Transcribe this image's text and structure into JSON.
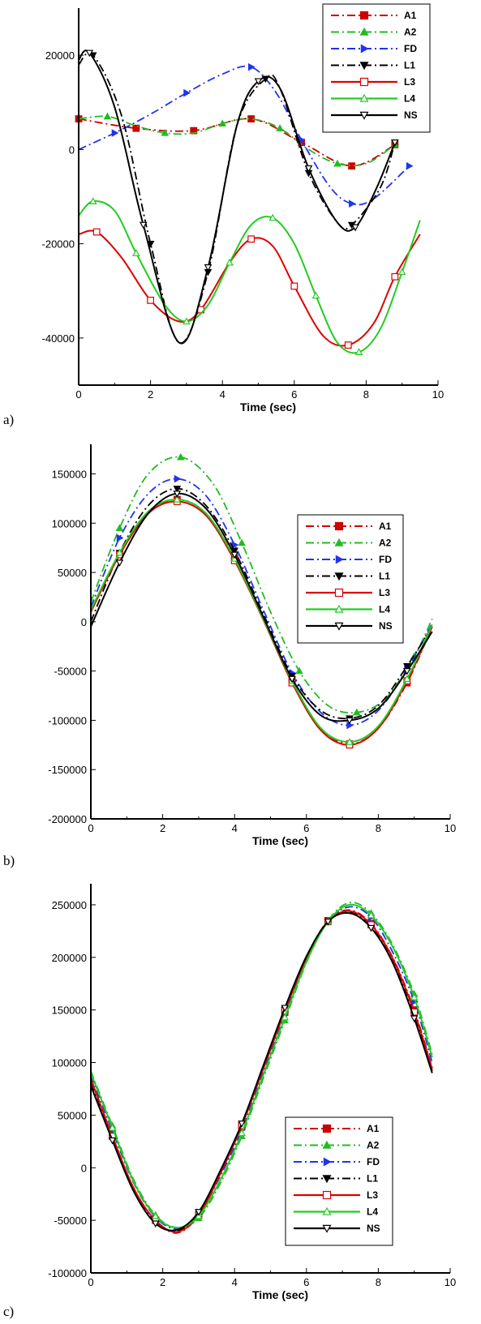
{
  "colors": {
    "A1": "#cc0000",
    "A2": "#22bb22",
    "FD": "#2233ee",
    "L1": "#000000",
    "L3": "#dd0000",
    "L4": "#22cc22",
    "NS": "#000000"
  },
  "legend_entries": [
    {
      "name": "A1",
      "dash": "dashdot",
      "marker": "square-filled",
      "color": "#cc0000"
    },
    {
      "name": "A2",
      "dash": "dashdot",
      "marker": "triangle-up-filled",
      "color": "#22bb22"
    },
    {
      "name": "FD",
      "dash": "dashdot",
      "marker": "triangle-right-filled",
      "color": "#2233ee"
    },
    {
      "name": "L1",
      "dash": "dashdot",
      "marker": "triangle-down-filled",
      "color": "#000000"
    },
    {
      "name": "L3",
      "dash": "solid",
      "marker": "square-open",
      "color": "#dd0000"
    },
    {
      "name": "L4",
      "dash": "solid",
      "marker": "triangle-up-open",
      "color": "#22cc22"
    },
    {
      "name": "NS",
      "dash": "solid",
      "marker": "triangle-down-open",
      "color": "#000000"
    }
  ],
  "chart_data": [
    {
      "panel_label": "a)",
      "type": "line",
      "title": "",
      "xlabel": "Time (sec)",
      "ylabel": "",
      "xlim": [
        0,
        10
      ],
      "ylim": [
        -50000,
        30000
      ],
      "xticks": [
        "0",
        "2",
        "4",
        "6",
        "8",
        "10"
      ],
      "yticks": [
        "20000",
        "0",
        "-20000",
        "-40000"
      ],
      "ytick_values": [
        20000,
        0,
        -20000,
        -40000
      ],
      "legend_position": "top-right",
      "series": [
        {
          "name": "A1",
          "x": [
            0,
            1.6,
            3.2,
            4.8,
            6.2,
            7.6,
            8.8
          ],
          "y": [
            6500,
            4500,
            4000,
            6500,
            1500,
            -3500,
            1000
          ]
        },
        {
          "name": "A2",
          "x": [
            0,
            0.8,
            1.6,
            2.4,
            3.2,
            4.0,
            4.8,
            5.6,
            6.4,
            7.2,
            8.0,
            8.8
          ],
          "y": [
            6500,
            7000,
            5000,
            3500,
            3500,
            5500,
            6500,
            4500,
            0,
            -3000,
            -3000,
            1000
          ]
        },
        {
          "name": "FD",
          "x": [
            0,
            1.0,
            2.0,
            3.0,
            4.0,
            4.8,
            5.5,
            6.2,
            7.0,
            7.6,
            8.2,
            9.2
          ],
          "y": [
            0,
            3500,
            7500,
            12000,
            16000,
            17500,
            12000,
            2000,
            -8000,
            -11500,
            -10500,
            -3500
          ]
        },
        {
          "name": "L1",
          "x": [
            0,
            0.4,
            1.2,
            2.0,
            2.8,
            3.6,
            4.4,
            5.2,
            5.6,
            6.4,
            7.2,
            7.6,
            8.4,
            8.8
          ],
          "y": [
            18000,
            20000,
            7000,
            -20000,
            -41000,
            -26000,
            5000,
            15000,
            13000,
            -5000,
            -15500,
            -16000,
            -8000,
            1500
          ]
        },
        {
          "name": "L3",
          "x": [
            0,
            0.5,
            1.2,
            2.0,
            2.8,
            3.4,
            4.2,
            4.8,
            5.4,
            6.0,
            6.8,
            7.5,
            8.2,
            8.8,
            9.5
          ],
          "y": [
            -18000,
            -17500,
            -23000,
            -32000,
            -36500,
            -34000,
            -24000,
            -19000,
            -20500,
            -29000,
            -39500,
            -41500,
            -37000,
            -27000,
            -18000
          ]
        },
        {
          "name": "L4",
          "x": [
            0,
            0.4,
            1.0,
            1.6,
            2.4,
            3.0,
            3.6,
            4.2,
            4.8,
            5.4,
            6.0,
            6.6,
            7.2,
            7.8,
            8.4,
            9.0,
            9.5
          ],
          "y": [
            -14000,
            -11000,
            -13000,
            -22000,
            -33000,
            -36500,
            -33000,
            -24000,
            -16000,
            -14500,
            -20000,
            -31000,
            -41000,
            -43000,
            -38000,
            -26000,
            -15000
          ]
        },
        {
          "name": "NS",
          "x": [
            0,
            0.3,
            1.0,
            1.8,
            2.8,
            3.6,
            4.4,
            5.0,
            5.6,
            6.4,
            7.2,
            7.7,
            8.3,
            8.8
          ],
          "y": [
            19000,
            20500,
            9000,
            -16000,
            -41000,
            -25000,
            5000,
            14500,
            13000,
            -4000,
            -15500,
            -16500,
            -8000,
            1500
          ]
        }
      ]
    },
    {
      "panel_label": "b)",
      "type": "line",
      "title": "",
      "xlabel": "Time (sec)",
      "ylabel": "",
      "xlim": [
        0,
        10
      ],
      "ylim": [
        -200000,
        180000
      ],
      "xticks": [
        "0",
        "2",
        "4",
        "6",
        "8",
        "10"
      ],
      "yticks": [
        "150000",
        "100000",
        "50000",
        "0",
        "-50000",
        "-100000",
        "-150000",
        "-200000"
      ],
      "ytick_values": [
        150000,
        100000,
        50000,
        0,
        -50000,
        -100000,
        -150000,
        -200000
      ],
      "legend_position": "top-right",
      "series": [
        {
          "name": "A1",
          "x": [
            0,
            0.8,
            1.6,
            2.4,
            3.2,
            4.0,
            4.8,
            5.6,
            6.4,
            7.2,
            8.0,
            8.8,
            9.5
          ],
          "y": [
            10000,
            68000,
            110000,
            124000,
            110000,
            65000,
            5000,
            -60000,
            -108000,
            -124000,
            -108000,
            -62000,
            -5000
          ]
        },
        {
          "name": "A2",
          "x": [
            0,
            0.8,
            1.6,
            2.5,
            3.4,
            4.2,
            5.0,
            5.8,
            6.6,
            7.4,
            8.2,
            9.0,
            9.5
          ],
          "y": [
            20000,
            95000,
            150000,
            167000,
            140000,
            80000,
            10000,
            -50000,
            -85000,
            -92000,
            -78000,
            -35000,
            3000
          ]
        },
        {
          "name": "FD",
          "x": [
            0,
            0.8,
            1.6,
            2.4,
            3.2,
            4.0,
            4.8,
            5.6,
            6.4,
            7.2,
            8.0,
            8.8,
            9.5
          ],
          "y": [
            15000,
            85000,
            130000,
            145000,
            128000,
            78000,
            12000,
            -52000,
            -92000,
            -105000,
            -90000,
            -48000,
            -2000
          ]
        },
        {
          "name": "L1",
          "x": [
            0,
            0.8,
            1.6,
            2.4,
            3.2,
            4.0,
            4.8,
            5.6,
            6.4,
            7.2,
            8.0,
            8.8,
            9.5
          ],
          "y": [
            0,
            70000,
            118000,
            135000,
            118000,
            72000,
            8000,
            -55000,
            -90000,
            -98000,
            -85000,
            -45000,
            -5000
          ]
        },
        {
          "name": "L3",
          "x": [
            0,
            0.8,
            1.6,
            2.4,
            3.2,
            4.0,
            4.8,
            5.6,
            6.4,
            7.2,
            8.0,
            8.8,
            9.5
          ],
          "y": [
            10000,
            68000,
            110000,
            122000,
            108000,
            62000,
            2000,
            -62000,
            -110000,
            -125000,
            -108000,
            -60000,
            -5000
          ]
        },
        {
          "name": "L4",
          "x": [
            0,
            0.8,
            1.6,
            2.4,
            3.2,
            4.0,
            4.8,
            5.6,
            6.4,
            7.2,
            8.0,
            8.8,
            9.5
          ],
          "y": [
            12000,
            70000,
            112000,
            124000,
            110000,
            64000,
            3000,
            -60000,
            -108000,
            -122000,
            -106000,
            -58000,
            -3000
          ]
        },
        {
          "name": "NS",
          "x": [
            0,
            0.8,
            1.6,
            2.4,
            3.2,
            4.0,
            4.8,
            5.6,
            6.4,
            7.2,
            8.0,
            8.8,
            9.5
          ],
          "y": [
            -5000,
            60000,
            110000,
            130000,
            115000,
            68000,
            5000,
            -58000,
            -95000,
            -100000,
            -88000,
            -50000,
            -10000
          ]
        }
      ]
    },
    {
      "panel_label": "c)",
      "type": "line",
      "title": "",
      "xlabel": "Time (sec)",
      "ylabel": "",
      "xlim": [
        0,
        10
      ],
      "ylim": [
        -100000,
        270000
      ],
      "xticks": [
        "0",
        "2",
        "4",
        "6",
        "8",
        "10"
      ],
      "yticks": [
        "250000",
        "200000",
        "150000",
        "100000",
        "50000",
        "0",
        "-50000",
        "-100000"
      ],
      "ytick_values": [
        250000,
        200000,
        150000,
        100000,
        50000,
        0,
        -50000,
        -100000
      ],
      "legend_position": "bottom-right",
      "series": [
        {
          "name": "A1",
          "x": [
            0,
            0.6,
            1.2,
            1.8,
            2.4,
            3.0,
            3.6,
            4.2,
            4.8,
            5.4,
            6.0,
            6.6,
            7.2,
            7.8,
            8.4,
            9.0,
            9.5
          ],
          "y": [
            85000,
            30000,
            -20000,
            -50000,
            -62000,
            -45000,
            -5000,
            40000,
            95000,
            150000,
            200000,
            235000,
            245000,
            232000,
            200000,
            150000,
            95000
          ]
        },
        {
          "name": "A2",
          "x": [
            0,
            0.6,
            1.2,
            1.8,
            2.4,
            3.0,
            3.6,
            4.2,
            4.8,
            5.4,
            6.0,
            6.6,
            7.2,
            7.8,
            8.4,
            9.0,
            9.5
          ],
          "y": [
            92000,
            40000,
            -12000,
            -45000,
            -57000,
            -48000,
            -15000,
            30000,
            85000,
            140000,
            195000,
            235000,
            252000,
            242000,
            212000,
            165000,
            108000
          ]
        },
        {
          "name": "FD",
          "x": [
            0,
            0.6,
            1.2,
            1.8,
            2.4,
            3.0,
            3.6,
            4.2,
            4.8,
            5.4,
            6.0,
            6.6,
            7.2,
            7.8,
            8.4,
            9.0,
            9.5
          ],
          "y": [
            88000,
            35000,
            -15000,
            -47000,
            -58000,
            -44000,
            -8000,
            36000,
            90000,
            145000,
            198000,
            234000,
            248000,
            238000,
            205000,
            158000,
            100000
          ]
        },
        {
          "name": "L1",
          "x": [
            0,
            0.6,
            1.2,
            1.8,
            2.4,
            3.0,
            3.6,
            4.2,
            4.8,
            5.4,
            6.0,
            6.6,
            7.2,
            7.8,
            8.4,
            9.0,
            9.5
          ],
          "y": [
            80000,
            28000,
            -22000,
            -52000,
            -60000,
            -44000,
            -5000,
            40000,
            95000,
            150000,
            200000,
            234000,
            243000,
            230000,
            198000,
            145000,
            92000
          ]
        },
        {
          "name": "L3",
          "x": [
            0,
            0.6,
            1.2,
            1.8,
            2.4,
            3.0,
            3.6,
            4.2,
            4.8,
            5.4,
            6.0,
            6.6,
            7.2,
            7.8,
            8.4,
            9.0,
            9.5
          ],
          "y": [
            84000,
            30000,
            -20000,
            -50000,
            -61000,
            -45000,
            -6000,
            40000,
            94000,
            149000,
            199000,
            234000,
            244000,
            231000,
            199000,
            148000,
            94000
          ]
        },
        {
          "name": "L4",
          "x": [
            0,
            0.6,
            1.2,
            1.8,
            2.4,
            3.0,
            3.6,
            4.2,
            4.8,
            5.4,
            6.0,
            6.6,
            7.2,
            7.8,
            8.4,
            9.0,
            9.5
          ],
          "y": [
            90000,
            38000,
            -14000,
            -46000,
            -57000,
            -46000,
            -12000,
            33000,
            88000,
            143000,
            196000,
            234000,
            250000,
            240000,
            210000,
            162000,
            105000
          ]
        },
        {
          "name": "NS",
          "x": [
            0,
            0.6,
            1.2,
            1.8,
            2.4,
            3.0,
            3.6,
            4.2,
            4.8,
            5.4,
            6.0,
            6.6,
            7.2,
            7.8,
            8.4,
            9.0,
            9.5
          ],
          "y": [
            78000,
            26000,
            -23000,
            -53000,
            -59000,
            -42000,
            -3000,
            42000,
            97000,
            152000,
            201000,
            234000,
            242000,
            228000,
            195000,
            142000,
            90000
          ]
        }
      ]
    }
  ]
}
